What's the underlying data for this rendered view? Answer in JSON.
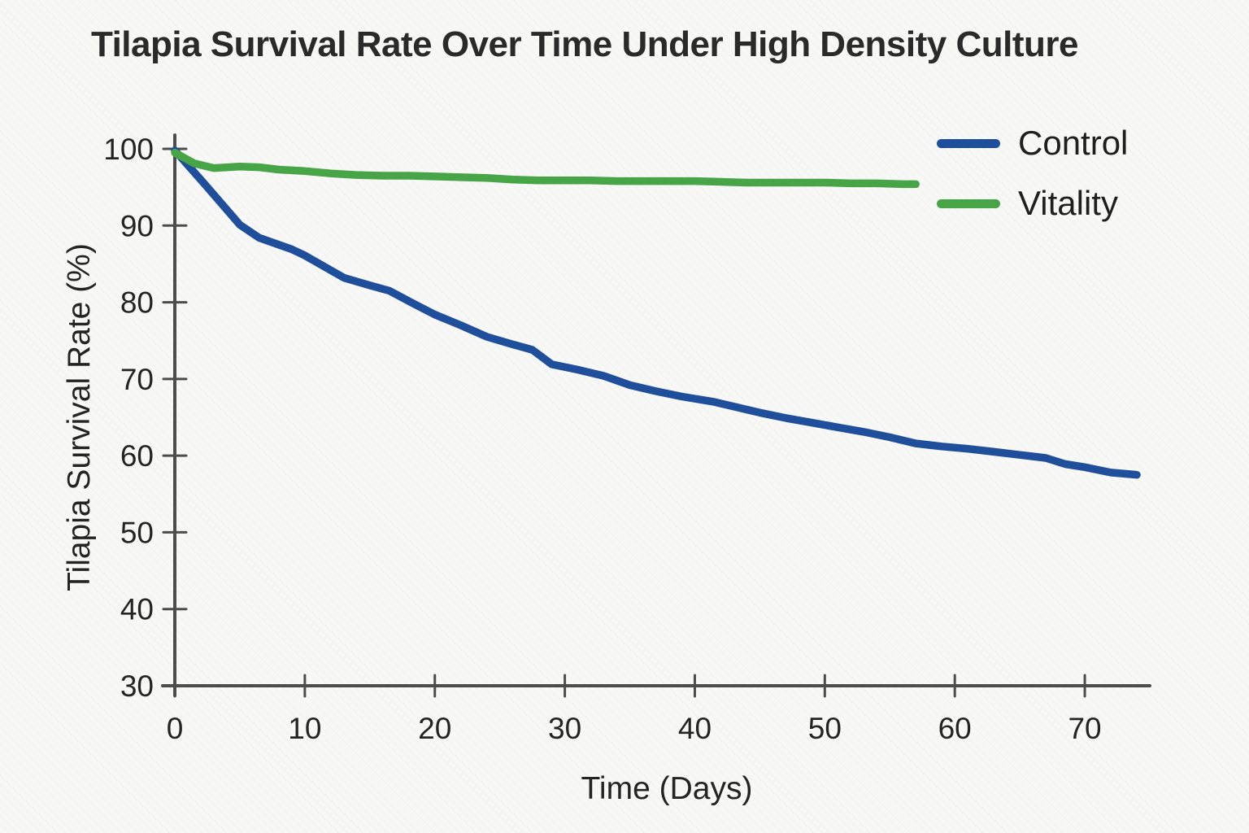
{
  "chart_data": {
    "type": "line",
    "title": "Tilapia Survival Rate Over Time Under High Density Culture",
    "xlabel": "Time (Days)",
    "ylabel": "Tilapia Survival Rate (%)",
    "xlim": [
      0,
      75
    ],
    "ylim": [
      30,
      100
    ],
    "xticks": [
      0,
      10,
      20,
      30,
      40,
      50,
      60,
      70
    ],
    "yticks": [
      30,
      40,
      50,
      60,
      70,
      80,
      90,
      100
    ],
    "grid": false,
    "legend_position": "upper right",
    "axis_color": "#4d4d4d",
    "background_color": "#f8f8f6",
    "series": [
      {
        "name": "Control",
        "color": "#1f4e9a",
        "points": [
          [
            0,
            99.8
          ],
          [
            2.5,
            95.0
          ],
          [
            5,
            90.1
          ],
          [
            6.5,
            88.4
          ],
          [
            9,
            86.9
          ],
          [
            10,
            86.1
          ],
          [
            13,
            83.2
          ],
          [
            15,
            82.2
          ],
          [
            16.5,
            81.5
          ],
          [
            18.5,
            79.7
          ],
          [
            20,
            78.4
          ],
          [
            22,
            77.0
          ],
          [
            24,
            75.5
          ],
          [
            26,
            74.5
          ],
          [
            27.5,
            73.8
          ],
          [
            29,
            71.9
          ],
          [
            31,
            71.2
          ],
          [
            33,
            70.4
          ],
          [
            35,
            69.2
          ],
          [
            37,
            68.4
          ],
          [
            39,
            67.7
          ],
          [
            41.5,
            67.0
          ],
          [
            43,
            66.4
          ],
          [
            45,
            65.6
          ],
          [
            47,
            64.9
          ],
          [
            49,
            64.3
          ],
          [
            51,
            63.7
          ],
          [
            53,
            63.1
          ],
          [
            55,
            62.4
          ],
          [
            57,
            61.6
          ],
          [
            59,
            61.2
          ],
          [
            61,
            60.9
          ],
          [
            63,
            60.5
          ],
          [
            65,
            60.1
          ],
          [
            67,
            59.7
          ],
          [
            68.5,
            58.9
          ],
          [
            70,
            58.5
          ],
          [
            72,
            57.8
          ],
          [
            74,
            57.5
          ]
        ]
      },
      {
        "name": "Vitality",
        "color": "#47a447",
        "points": [
          [
            0,
            99.5
          ],
          [
            1.5,
            98.1
          ],
          [
            3,
            97.5
          ],
          [
            5,
            97.7
          ],
          [
            6.5,
            97.6
          ],
          [
            8,
            97.3
          ],
          [
            10,
            97.1
          ],
          [
            12,
            96.8
          ],
          [
            14,
            96.6
          ],
          [
            16,
            96.5
          ],
          [
            18,
            96.5
          ],
          [
            20,
            96.4
          ],
          [
            22,
            96.3
          ],
          [
            24,
            96.2
          ],
          [
            26,
            96.0
          ],
          [
            28,
            95.9
          ],
          [
            30,
            95.9
          ],
          [
            32,
            95.9
          ],
          [
            34,
            95.8
          ],
          [
            36,
            95.8
          ],
          [
            38,
            95.8
          ],
          [
            40,
            95.8
          ],
          [
            42,
            95.7
          ],
          [
            44,
            95.6
          ],
          [
            46,
            95.6
          ],
          [
            48,
            95.6
          ],
          [
            50,
            95.6
          ],
          [
            52,
            95.5
          ],
          [
            54,
            95.5
          ],
          [
            56,
            95.4
          ],
          [
            57,
            95.4
          ]
        ]
      }
    ]
  }
}
